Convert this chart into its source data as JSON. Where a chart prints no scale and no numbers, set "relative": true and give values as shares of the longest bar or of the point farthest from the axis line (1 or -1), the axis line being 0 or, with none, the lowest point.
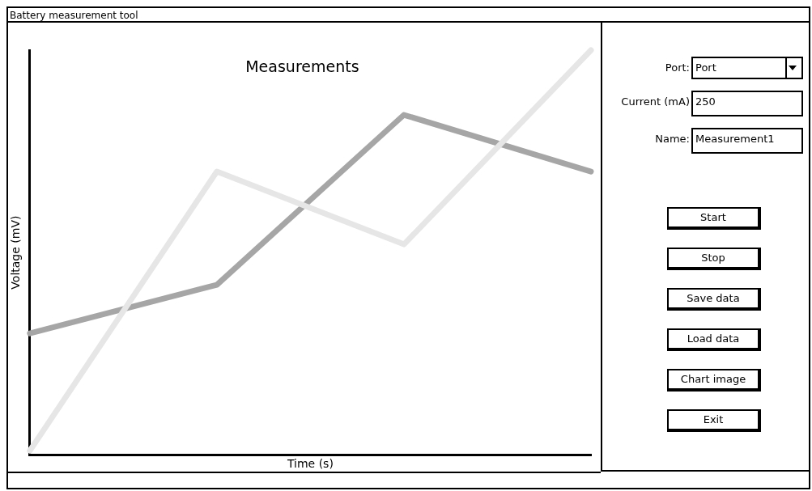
{
  "chart_data": [
    {
      "type": "line",
      "title": "Measurements",
      "xlabel": "Time (s)",
      "ylabel": "Voltage (mV)",
      "relative": true,
      "marker": "none",
      "categories": [
        null,
        null,
        null,
        null
      ],
      "series": [
        {
          "color": "#e6e6e6",
          "values": [
            0.01,
            0.7,
            0.52,
            1
          ]
        },
        {
          "color": "#a6a6a6",
          "values": [
            0.3,
            0.42,
            0.84,
            0.7
          ]
        }
      ]
    },
    {
      "type": "other",
      "title": "Battery measurement tool",
      "annotations": [
        "Port:",
        "Port",
        "Current (mA)",
        "250",
        "Name:",
        "Measurement1",
        "Start",
        "Stop",
        "Save data",
        "Load data",
        "Chart image",
        "Exit"
      ]
    }
  ]
}
